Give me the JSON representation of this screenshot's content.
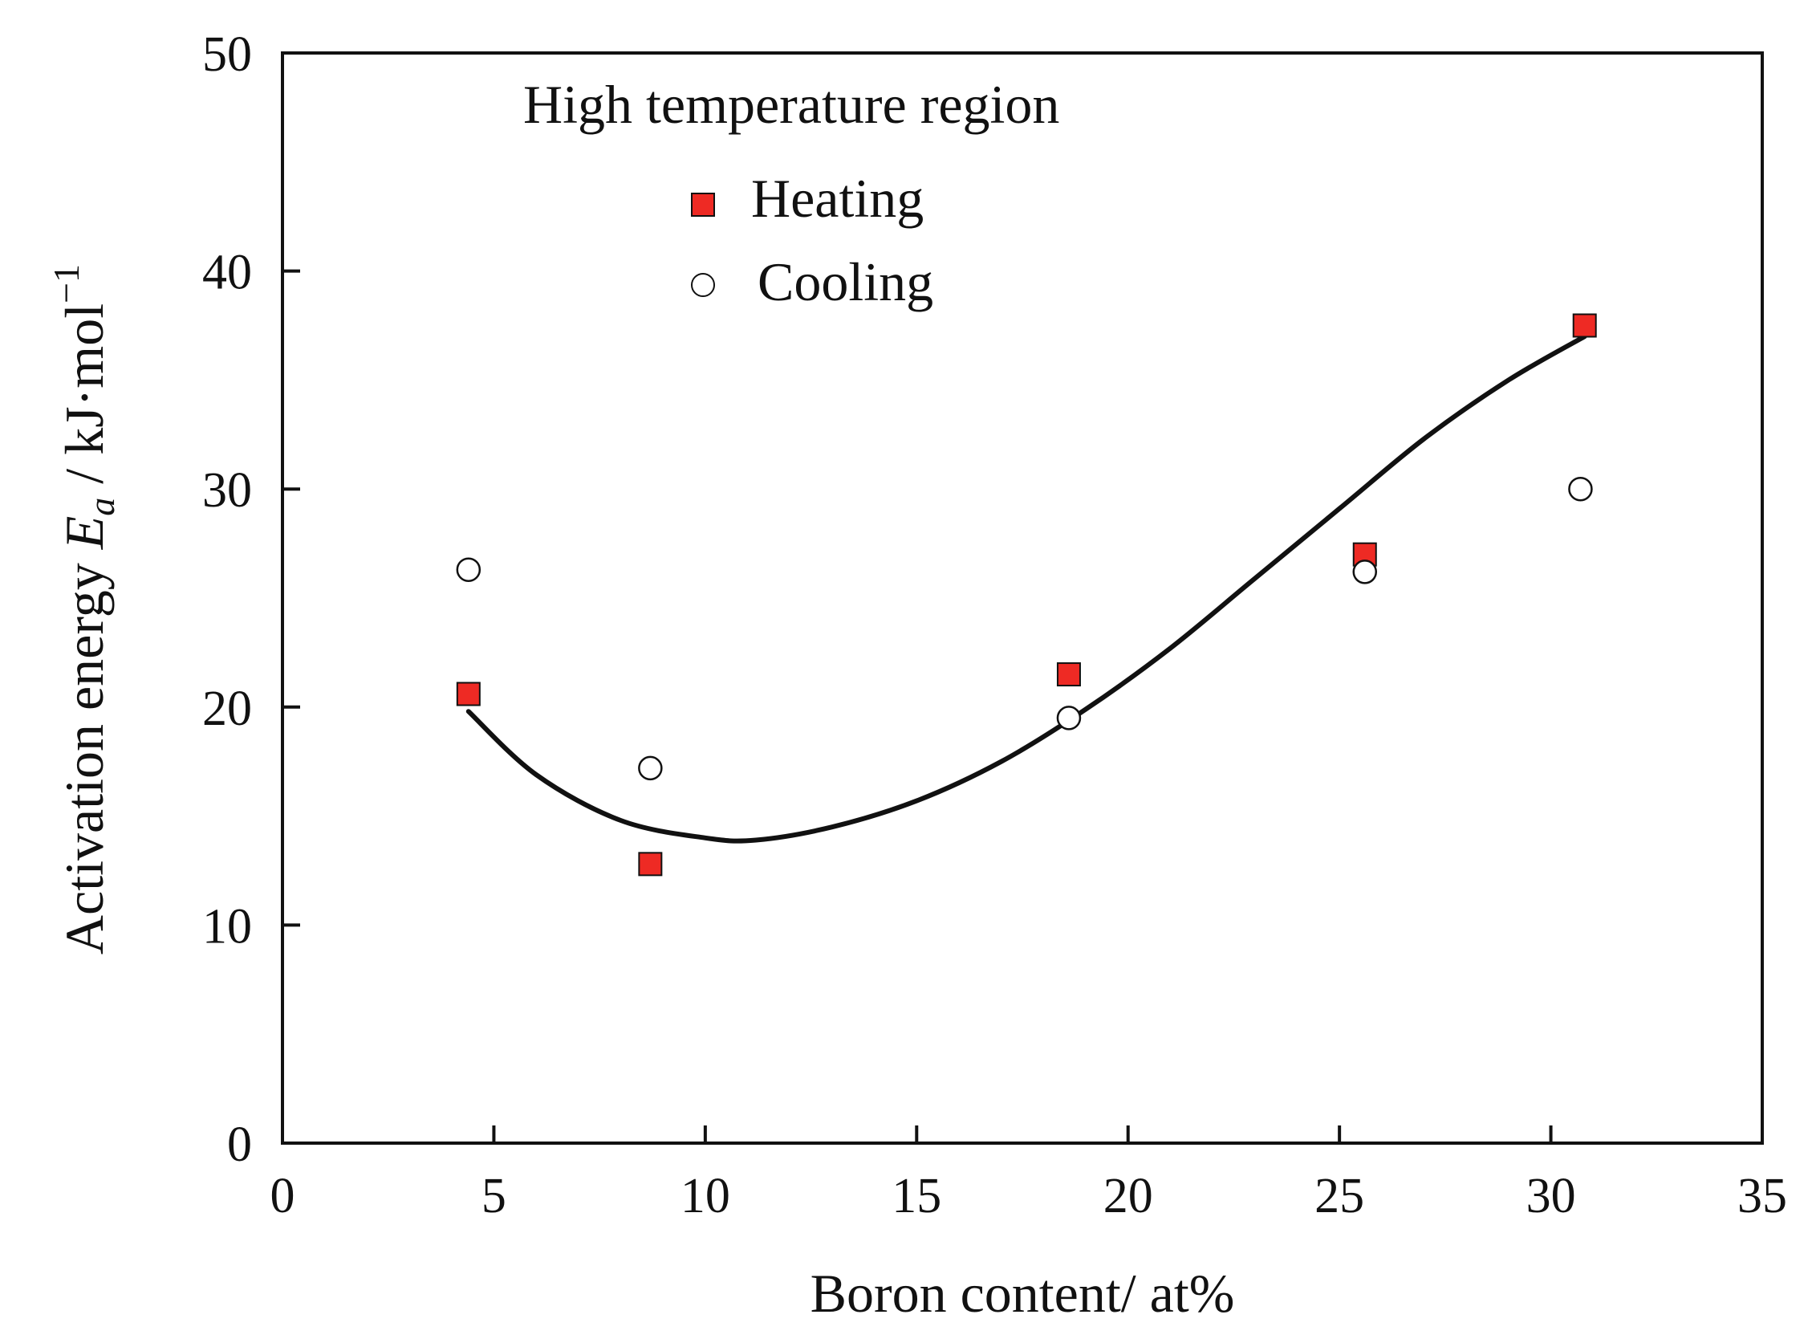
{
  "chart_data": {
    "type": "scatter",
    "title": "",
    "xlabel": "Boron content/ at%",
    "ylabel": {
      "prefix": "Activation energy ",
      "symbol": "E",
      "subscript": "a",
      "unit": " / kJ·mol",
      "superscript": "−1"
    },
    "xlim": [
      0,
      35
    ],
    "ylim": [
      0,
      50
    ],
    "xticks": [
      0,
      5,
      10,
      15,
      20,
      25,
      30,
      35
    ],
    "yticks": [
      0,
      10,
      20,
      30,
      40,
      50
    ],
    "grid": false,
    "legend": {
      "title": "High temperature region",
      "placement": "top-center"
    },
    "series": [
      {
        "name": "Heating",
        "marker": "square",
        "color": "#ee2a24",
        "x": [
          4.4,
          8.7,
          18.6,
          25.6,
          30.8
        ],
        "y": [
          20.6,
          12.8,
          21.5,
          27.0,
          37.5
        ]
      },
      {
        "name": "Cooling",
        "marker": "circle",
        "color": "#ffffff",
        "x": [
          4.4,
          8.7,
          18.6,
          25.6,
          30.7
        ],
        "y": [
          26.3,
          17.2,
          19.5,
          26.2,
          30.0
        ]
      }
    ],
    "fit_curve": {
      "color": "#111111",
      "x": [
        4.4,
        6.0,
        8.0,
        10.0,
        11.2,
        13.0,
        15.0,
        17.0,
        19.0,
        21.0,
        23.0,
        25.0,
        27.0,
        29.0,
        30.8
      ],
      "y": [
        19.8,
        16.9,
        14.8,
        14.0,
        13.9,
        14.5,
        15.7,
        17.5,
        19.9,
        22.7,
        25.9,
        29.1,
        32.3,
        35.0,
        37.0
      ]
    }
  }
}
